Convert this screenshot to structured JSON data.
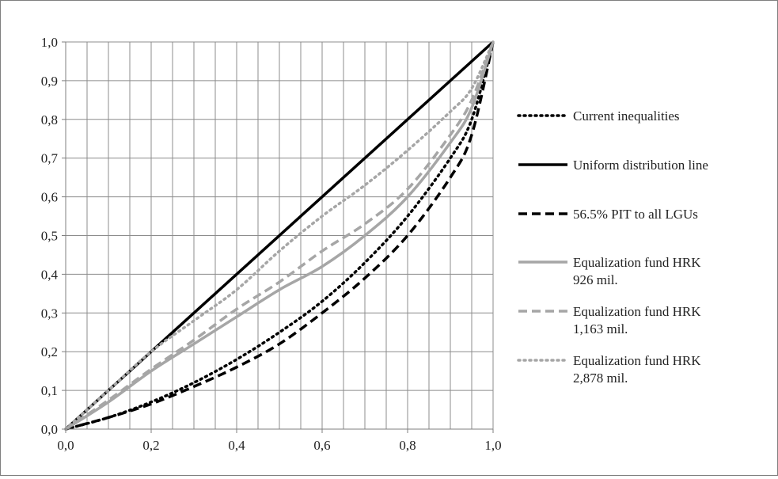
{
  "chart_data": {
    "type": "line",
    "xlabel": "",
    "ylabel": "",
    "xlim": [
      0,
      1
    ],
    "ylim": [
      0,
      1
    ],
    "grid": true,
    "legend_position": "right",
    "x_ticks": [
      "0,0",
      "0,2",
      "0,4",
      "0,6",
      "0,8",
      "1,0"
    ],
    "y_ticks": [
      "0,0",
      "0,1",
      "0,2",
      "0,3",
      "0,4",
      "0,5",
      "0,6",
      "0,7",
      "0,8",
      "0,9",
      "1,0"
    ],
    "series": [
      {
        "name": "Current inequalities",
        "legend_lines": [
          "Current inequalities"
        ],
        "color": "#000000",
        "style": "dotted",
        "points": [
          [
            0,
            0
          ],
          [
            0.1,
            0.03
          ],
          [
            0.2,
            0.07
          ],
          [
            0.3,
            0.12
          ],
          [
            0.4,
            0.18
          ],
          [
            0.5,
            0.25
          ],
          [
            0.6,
            0.33
          ],
          [
            0.7,
            0.43
          ],
          [
            0.8,
            0.55
          ],
          [
            0.9,
            0.7
          ],
          [
            0.95,
            0.8
          ],
          [
            1,
            1
          ]
        ]
      },
      {
        "name": "Uniform distribution line",
        "legend_lines": [
          "Uniform distribution line"
        ],
        "color": "#000000",
        "style": "solid",
        "points": [
          [
            0,
            0
          ],
          [
            1,
            1
          ]
        ]
      },
      {
        "name": "56.5% PIT to all LGUs",
        "legend_lines": [
          "56.5% PIT to all LGUs"
        ],
        "color": "#000000",
        "style": "dashed",
        "points": [
          [
            0,
            0
          ],
          [
            0.1,
            0.03
          ],
          [
            0.2,
            0.065
          ],
          [
            0.3,
            0.11
          ],
          [
            0.4,
            0.16
          ],
          [
            0.5,
            0.22
          ],
          [
            0.6,
            0.3
          ],
          [
            0.7,
            0.39
          ],
          [
            0.8,
            0.5
          ],
          [
            0.9,
            0.65
          ],
          [
            0.95,
            0.76
          ],
          [
            1,
            1
          ]
        ]
      },
      {
        "name": "Equalization fund HRK 926 mil.",
        "legend_lines": [
          "Equalization fund HRK",
          "926 mil."
        ],
        "color": "#a6a6a6",
        "style": "solid",
        "points": [
          [
            0,
            0
          ],
          [
            0.1,
            0.07
          ],
          [
            0.2,
            0.15
          ],
          [
            0.3,
            0.22
          ],
          [
            0.4,
            0.29
          ],
          [
            0.5,
            0.36
          ],
          [
            0.6,
            0.42
          ],
          [
            0.7,
            0.5
          ],
          [
            0.8,
            0.6
          ],
          [
            0.9,
            0.74
          ],
          [
            0.95,
            0.83
          ],
          [
            1,
            1
          ]
        ]
      },
      {
        "name": "Equalization fund HRK 1,163 mil.",
        "legend_lines": [
          "Equalization fund HRK",
          "1,163 mil."
        ],
        "color": "#a6a6a6",
        "style": "dashed",
        "points": [
          [
            0,
            0
          ],
          [
            0.1,
            0.075
          ],
          [
            0.2,
            0.155
          ],
          [
            0.3,
            0.23
          ],
          [
            0.4,
            0.31
          ],
          [
            0.5,
            0.38
          ],
          [
            0.6,
            0.46
          ],
          [
            0.7,
            0.53
          ],
          [
            0.8,
            0.62
          ],
          [
            0.9,
            0.76
          ],
          [
            0.95,
            0.85
          ],
          [
            1,
            1
          ]
        ]
      },
      {
        "name": "Equalization fund HRK 2,878 mil.",
        "legend_lines": [
          "Equalization fund HRK",
          "2,878 mil."
        ],
        "color": "#a6a6a6",
        "style": "dotted",
        "points": [
          [
            0,
            0
          ],
          [
            0.1,
            0.1
          ],
          [
            0.2,
            0.2
          ],
          [
            0.3,
            0.28
          ],
          [
            0.4,
            0.36
          ],
          [
            0.5,
            0.46
          ],
          [
            0.6,
            0.55
          ],
          [
            0.7,
            0.63
          ],
          [
            0.8,
            0.72
          ],
          [
            0.9,
            0.82
          ],
          [
            0.95,
            0.88
          ],
          [
            1,
            1
          ]
        ]
      }
    ]
  }
}
